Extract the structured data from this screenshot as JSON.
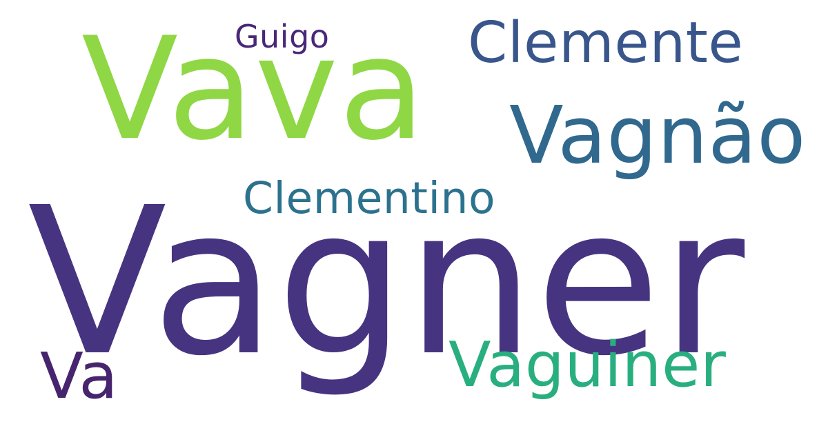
{
  "words": [
    {
      "text": "Vagner",
      "color": "#463480"
    },
    {
      "text": "Vava",
      "color": "#8fd744"
    },
    {
      "text": "Vagnão",
      "color": "#31688e"
    },
    {
      "text": "Clemente",
      "color": "#39568c"
    },
    {
      "text": "Vaguiner",
      "color": "#29af7f"
    },
    {
      "text": "Clementino",
      "color": "#2c728e"
    },
    {
      "text": "Va",
      "color": "#46256e"
    },
    {
      "text": "Guigo",
      "color": "#482878"
    }
  ]
}
